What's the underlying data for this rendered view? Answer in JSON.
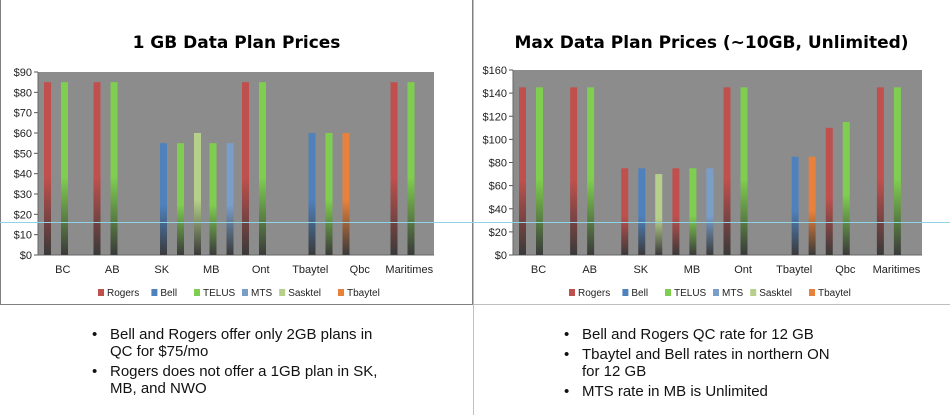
{
  "series_colors": {
    "Rogers": "#c0504d",
    "Bell": "#4f81bd",
    "TELUS": "#7fce4f",
    "MTS": "#7b9ec9",
    "Sasktel": "#b6cf8a",
    "Tbaytel": "#e8813b"
  },
  "chart_data": [
    {
      "type": "bar",
      "title": "1 GB Data Plan Prices",
      "categories": [
        "BC",
        "AB",
        "SK",
        "MB",
        "Ont",
        "Tbaytel",
        "Qbc",
        "Maritimes"
      ],
      "ylim": [
        0,
        90
      ],
      "yticks": [
        0,
        10,
        20,
        30,
        40,
        50,
        60,
        70,
        80,
        90
      ],
      "ytick_labels": [
        "$0",
        "$10",
        "$20",
        "$30",
        "$40",
        "$50",
        "$60",
        "$70",
        "$80",
        "$90"
      ],
      "legend": "bottom",
      "grid": false,
      "series": [
        {
          "name": "Rogers",
          "values": [
            85,
            85,
            null,
            null,
            85,
            null,
            null,
            85
          ]
        },
        {
          "name": "Bell",
          "values": [
            null,
            null,
            55,
            null,
            null,
            60,
            null,
            null
          ]
        },
        {
          "name": "TELUS",
          "values": [
            85,
            85,
            55,
            55,
            85,
            60,
            null,
            85
          ]
        },
        {
          "name": "MTS",
          "values": [
            null,
            null,
            null,
            55,
            null,
            null,
            null,
            null
          ]
        },
        {
          "name": "Sasktel",
          "values": [
            null,
            null,
            60,
            null,
            null,
            null,
            null,
            null
          ]
        },
        {
          "name": "Tbaytel",
          "values": [
            null,
            null,
            null,
            null,
            null,
            60,
            null,
            null
          ]
        }
      ]
    },
    {
      "type": "bar",
      "title": "Max Data Plan Prices (~10GB, Unlimited)",
      "categories": [
        "BC",
        "AB",
        "SK",
        "MB",
        "Ont",
        "Tbaytel",
        "Qbc",
        "Maritimes"
      ],
      "ylim": [
        0,
        160
      ],
      "yticks": [
        0,
        20,
        40,
        60,
        80,
        100,
        120,
        140,
        160
      ],
      "ytick_labels": [
        "$0",
        "$20",
        "$40",
        "$60",
        "$80",
        "$100",
        "$120",
        "$140",
        "$160"
      ],
      "legend": "bottom",
      "grid": false,
      "series": [
        {
          "name": "Rogers",
          "values": [
            145,
            145,
            75,
            75,
            145,
            null,
            110,
            145
          ]
        },
        {
          "name": "Bell",
          "values": [
            null,
            null,
            75,
            null,
            null,
            85,
            null,
            null
          ]
        },
        {
          "name": "TELUS",
          "values": [
            145,
            145,
            null,
            75,
            145,
            null,
            115,
            145
          ]
        },
        {
          "name": "MTS",
          "values": [
            null,
            null,
            null,
            75,
            null,
            null,
            null,
            null
          ]
        },
        {
          "name": "Sasktel",
          "values": [
            null,
            null,
            70,
            null,
            null,
            null,
            null,
            null
          ]
        },
        {
          "name": "Tbaytel",
          "values": [
            null,
            null,
            null,
            null,
            null,
            85,
            null,
            null
          ]
        }
      ]
    }
  ],
  "notes_left": [
    "Bell and Rogers offer only 2GB plans in QC for $75/mo",
    "Rogers does not offer a 1GB plan in SK, MB, and NWO"
  ],
  "notes_right": [
    "Bell and Rogers QC rate for 12 GB",
    "Tbaytel and Bell rates in northern ON for 12 GB",
    "MTS rate in MB is Unlimited"
  ]
}
